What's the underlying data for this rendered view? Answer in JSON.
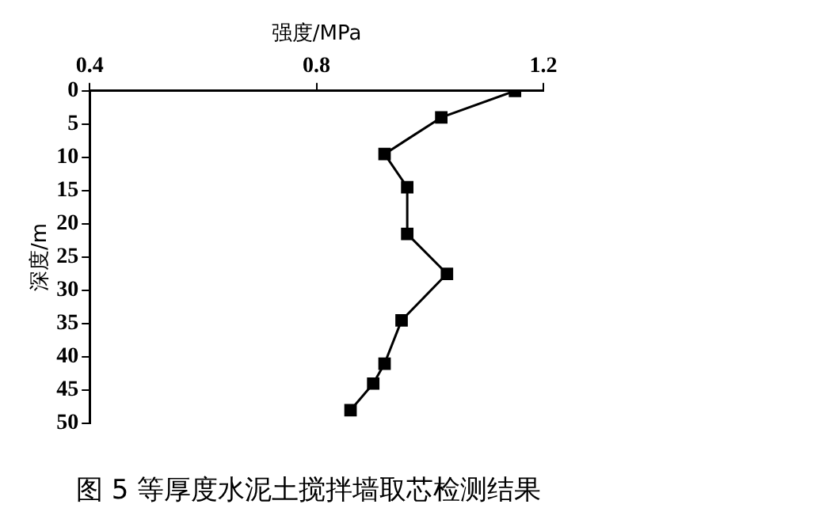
{
  "chart_data": {
    "type": "line",
    "xlabel": "强度/MPa",
    "ylabel": "深度/m",
    "annotations": [
      "图 5 等厚度水泥土搅拌墙取芯检测结果"
    ],
    "series": [
      {
        "color": "#000000",
        "x": [
          1.15,
          1.02,
          0.92,
          0.96,
          0.96,
          1.03,
          0.95,
          0.92,
          0.9,
          0.86
        ],
        "values": [
          0,
          4,
          9.5,
          14.5,
          21.5,
          27.5,
          34.5,
          41,
          44,
          48
        ]
      }
    ],
    "xlim": [
      0.4,
      1.2
    ],
    "xticks": [
      0.4,
      0.8,
      1.2
    ],
    "ylim": [
      50,
      0
    ],
    "yticks": [
      0,
      5,
      10,
      15,
      20,
      25,
      30,
      35,
      40,
      45,
      50
    ],
    "grid": false,
    "marker": "square",
    "line_style": "solid"
  }
}
